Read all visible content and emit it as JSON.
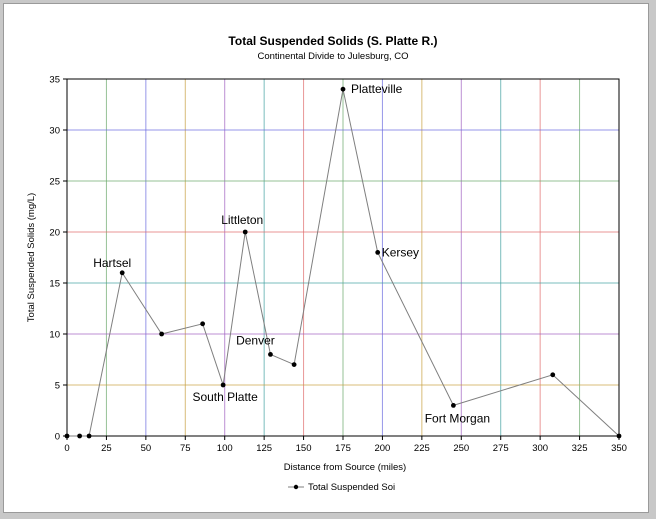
{
  "chart_data": {
    "type": "line",
    "title": "Total Suspended Solids (S. Platte R.)",
    "subtitle": "Continental Divide to Julesburg, CO",
    "xlabel": "Distance from Source (miles)",
    "ylabel": "Total Suspended Solids (mg/L)",
    "xlim": [
      0,
      350
    ],
    "ylim": [
      0,
      35
    ],
    "xticks": [
      0,
      25,
      50,
      75,
      100,
      125,
      150,
      175,
      200,
      225,
      250,
      275,
      300,
      325,
      350
    ],
    "yticks": [
      0,
      5,
      10,
      15,
      20,
      25,
      30,
      35
    ],
    "grid": true,
    "legend_position": "bottom",
    "series": [
      {
        "name": "Total Suspended Soi",
        "color": "#7f7f7f",
        "marker_color": "#000000",
        "x": [
          0,
          8,
          14,
          35,
          60,
          86,
          99,
          113,
          129,
          144,
          175,
          197,
          245,
          308,
          350
        ],
        "y": [
          0,
          0,
          0,
          16,
          10,
          11,
          5,
          20,
          8,
          7,
          34,
          18,
          3,
          6,
          0
        ]
      }
    ],
    "annotations": [
      {
        "text": "Hartsel",
        "x": 35,
        "y": 16
      },
      {
        "text": "South Platte",
        "x": 99,
        "y": 5
      },
      {
        "text": "Littleton",
        "x": 113,
        "y": 20
      },
      {
        "text": "Denver",
        "x": 129,
        "y": 8
      },
      {
        "text": "Platteville",
        "x": 175,
        "y": 34
      },
      {
        "text": "Kersey",
        "x": 197,
        "y": 18
      },
      {
        "text": "Fort Morgan",
        "x": 245,
        "y": 3
      }
    ],
    "gridline_colors": [
      "#e06a6a",
      "#6aa86a",
      "#6a6ae0",
      "#c8a040",
      "#a060c0",
      "#40a0a0"
    ]
  }
}
